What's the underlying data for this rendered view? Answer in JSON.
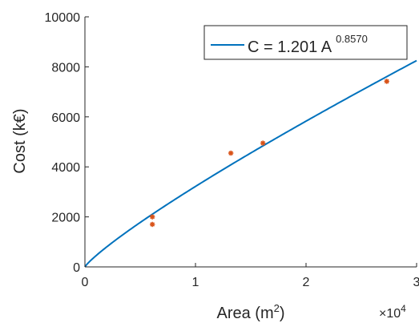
{
  "chart_data": {
    "type": "scatter",
    "xlabel": "Area (m",
    "xlabel_sup": "2",
    "xlabel_close": ")",
    "ylabel": "Cost (k€)",
    "x_multiplier_base": "×10",
    "x_multiplier_exp": "4",
    "xlim": [
      0,
      30000
    ],
    "ylim": [
      0,
      10000
    ],
    "x_ticks": [
      0,
      10000,
      20000,
      30000
    ],
    "x_tick_labels": [
      "0",
      "1",
      "2",
      "3"
    ],
    "y_ticks": [
      0,
      2000,
      4000,
      6000,
      8000,
      10000
    ],
    "y_tick_labels": [
      "0",
      "2000",
      "4000",
      "6000",
      "8000",
      "10000"
    ],
    "grid": false,
    "legend_position": "top-right",
    "legend": {
      "text": "C = 1.201 A",
      "sup": "0.8570"
    },
    "fit": {
      "coefficient": 1.201,
      "exponent": 0.857,
      "color": "#0072BD"
    },
    "series": [
      {
        "marker": "asterisk",
        "color": "#D95319",
        "x": [
          6100,
          6100,
          13200,
          16100,
          27300
        ],
        "y": [
          2000,
          1700,
          4550,
          4950,
          7420
        ]
      }
    ]
  }
}
